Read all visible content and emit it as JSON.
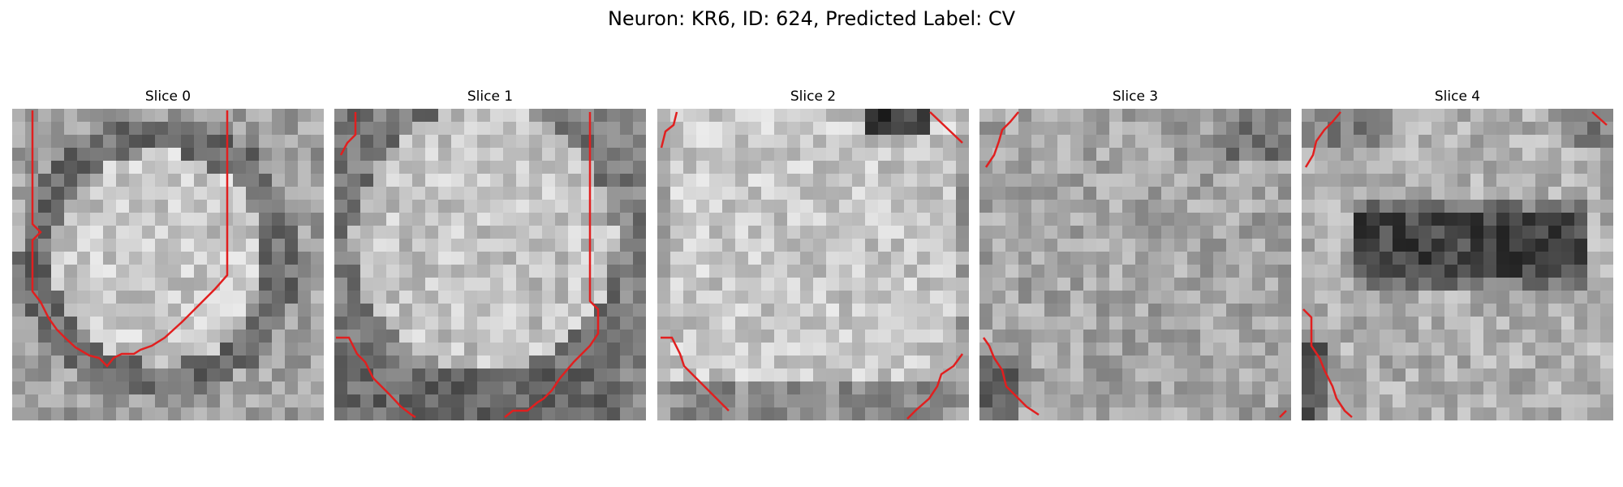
{
  "title": "Neuron: KR6, ID: 624, Predicted Label: CV",
  "colors": {
    "contour": "#e11f1f",
    "colormap": "gray"
  },
  "slices": [
    {
      "label": "Slice 0",
      "pattern": "ring"
    },
    {
      "label": "Slice 1",
      "pattern": "ring-bottom"
    },
    {
      "label": "Slice 2",
      "pattern": "bright"
    },
    {
      "label": "Slice 3",
      "pattern": "noisy"
    },
    {
      "label": "Slice 4",
      "pattern": "dark-band"
    }
  ]
}
